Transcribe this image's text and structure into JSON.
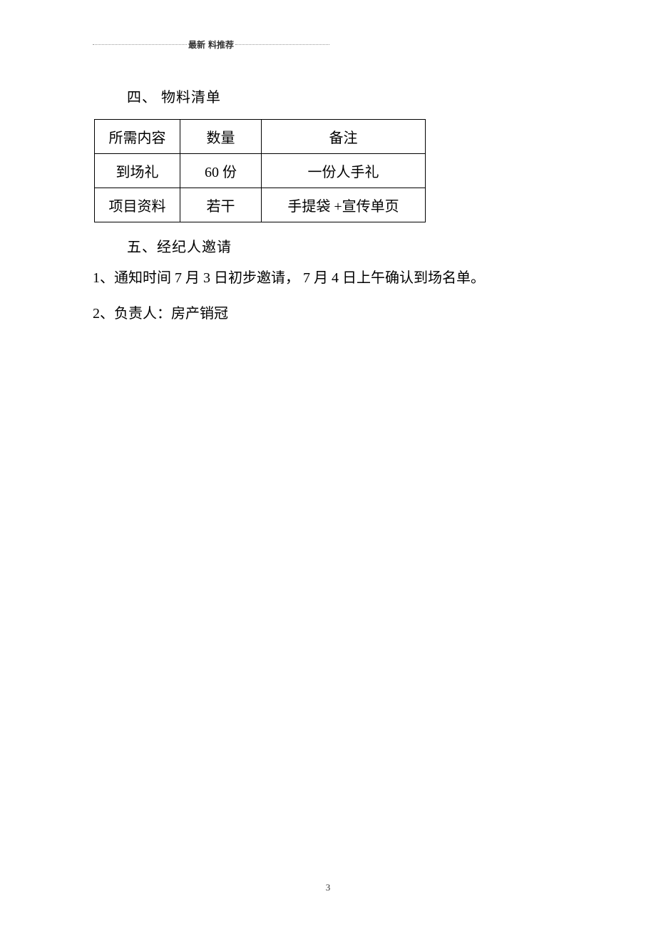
{
  "header": {
    "label_left": "最新",
    "label_right": " 料推荐"
  },
  "section4": {
    "heading": "四、  物料清单",
    "table": {
      "columns": [
        "所需内容",
        "数量",
        "备注"
      ],
      "rows": [
        [
          "到场礼",
          "60 份",
          "一份人手礼"
        ],
        [
          "项目资料",
          "若干",
          "手提袋 +宣传单页"
        ]
      ]
    }
  },
  "section5": {
    "heading": "五、经纪人邀请",
    "lines": [
      "1、通知时间 7 月 3 日初步邀请， 7 月 4 日上午确认到场名单。",
      "2、负责人：房产销冠"
    ]
  },
  "page_number": "3"
}
